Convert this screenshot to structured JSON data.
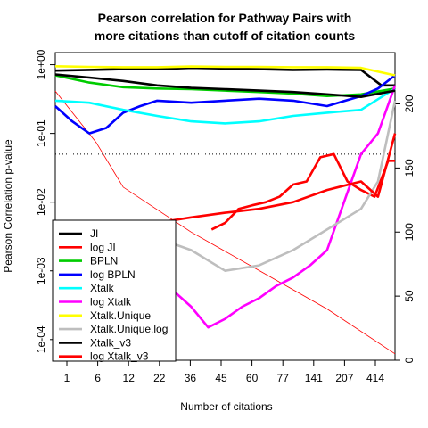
{
  "chart_data": {
    "type": "line",
    "title_lines": [
      "Pearson correlation for Pathway Pairs with",
      "more citations than cutoff of citation counts"
    ],
    "xlabel": "Number of citations",
    "ylabel": "Pearson Correlation p-value",
    "x_tick_labels": [
      "1",
      "6",
      "12",
      "22",
      "36",
      "45",
      "60",
      "77",
      "141",
      "207",
      "414"
    ],
    "y_left": {
      "scale": "log10",
      "range": [
        5e-05,
        1.5
      ],
      "tick_labels": [
        "1e-04",
        "1e-03",
        "1e-02",
        "1e-01",
        "1e+00"
      ]
    },
    "y_right": {
      "range": [
        0,
        240
      ],
      "tick_labels": [
        "0",
        "50",
        "100",
        "150",
        "200"
      ]
    },
    "reference_line": {
      "y": 0.05,
      "style": "dotted",
      "color": "#000000"
    },
    "decreasing_curve": {
      "color": "#ff0000",
      "axis": "right",
      "x": [
        0,
        12,
        20,
        40,
        60,
        80,
        100
      ],
      "y": [
        210,
        170,
        135,
        100,
        70,
        40,
        5
      ]
    },
    "x_domain": [
      0,
      100
    ],
    "series": [
      {
        "name": "JI",
        "color": "#000000",
        "x": [
          0,
          10,
          20,
          30,
          40,
          50,
          60,
          70,
          80,
          90,
          96,
          100
        ],
        "y": [
          0.82,
          0.84,
          0.86,
          0.86,
          0.9,
          0.88,
          0.86,
          0.84,
          0.85,
          0.84,
          0.5,
          0.5
        ]
      },
      {
        "name": "log JI",
        "color": "#ff0000",
        "x": [
          46,
          50,
          54,
          58,
          62,
          66,
          70,
          74,
          78,
          82,
          86,
          90,
          94,
          98,
          100
        ],
        "y": [
          0.004,
          0.005,
          0.008,
          0.009,
          0.01,
          0.012,
          0.018,
          0.02,
          0.045,
          0.05,
          0.02,
          0.015,
          0.012,
          0.04,
          0.04
        ]
      },
      {
        "name": "BPLN",
        "color": "#00cc00",
        "x": [
          0,
          10,
          20,
          30,
          40,
          50,
          60,
          70,
          80,
          90,
          100
        ],
        "y": [
          0.7,
          0.55,
          0.47,
          0.45,
          0.44,
          0.42,
          0.4,
          0.38,
          0.35,
          0.37,
          0.45
        ]
      },
      {
        "name": "log BPLN",
        "color": "#0000ff",
        "x": [
          0,
          5,
          10,
          15,
          20,
          25,
          30,
          40,
          50,
          60,
          70,
          80,
          90,
          95,
          100
        ],
        "y": [
          0.25,
          0.15,
          0.1,
          0.12,
          0.2,
          0.25,
          0.3,
          0.28,
          0.3,
          0.32,
          0.3,
          0.25,
          0.35,
          0.45,
          0.7
        ]
      },
      {
        "name": "Xtalk",
        "color": "#00ffff",
        "x": [
          0,
          10,
          20,
          30,
          40,
          50,
          60,
          70,
          80,
          90,
          100
        ],
        "y": [
          0.3,
          0.28,
          0.22,
          0.18,
          0.15,
          0.14,
          0.15,
          0.18,
          0.2,
          0.22,
          0.45
        ]
      },
      {
        "name": "log Xtalk",
        "color": "#ff00ff",
        "x": [
          30,
          35,
          40,
          45,
          50,
          55,
          60,
          65,
          70,
          75,
          80,
          85,
          90,
          95,
          100
        ],
        "y": [
          0.0008,
          0.0005,
          0.0003,
          0.00015,
          0.0002,
          0.0003,
          0.0004,
          0.0006,
          0.0008,
          0.0012,
          0.002,
          0.01,
          0.05,
          0.1,
          0.5
        ]
      },
      {
        "name": "Xtalk.Unique",
        "color": "#ffff00",
        "x": [
          0,
          10,
          20,
          30,
          40,
          50,
          60,
          70,
          80,
          90,
          100
        ],
        "y": [
          0.95,
          0.93,
          0.92,
          0.92,
          0.94,
          0.93,
          0.93,
          0.92,
          0.92,
          0.9,
          0.7
        ]
      },
      {
        "name": "Xtalk.Unique.log",
        "color": "#bebebe",
        "x": [
          30,
          40,
          50,
          60,
          70,
          80,
          90,
          95,
          100
        ],
        "y": [
          0.003,
          0.002,
          0.001,
          0.0012,
          0.002,
          0.004,
          0.008,
          0.02,
          0.3
        ]
      },
      {
        "name": "Xtalk_v3",
        "color": "#000000",
        "x": [
          0,
          10,
          20,
          30,
          40,
          50,
          60,
          70,
          80,
          90,
          100
        ],
        "y": [
          0.72,
          0.65,
          0.58,
          0.5,
          0.46,
          0.44,
          0.42,
          0.4,
          0.37,
          0.34,
          0.42
        ]
      },
      {
        "name": "log Xtalk_v3",
        "color": "#ff0000",
        "x": [
          0,
          10,
          20,
          30,
          40,
          50,
          60,
          70,
          80,
          90,
          95,
          100
        ],
        "y": [
          0.003,
          0.0035,
          0.004,
          0.005,
          0.006,
          0.007,
          0.008,
          0.01,
          0.015,
          0.02,
          0.012,
          0.1
        ]
      }
    ]
  }
}
